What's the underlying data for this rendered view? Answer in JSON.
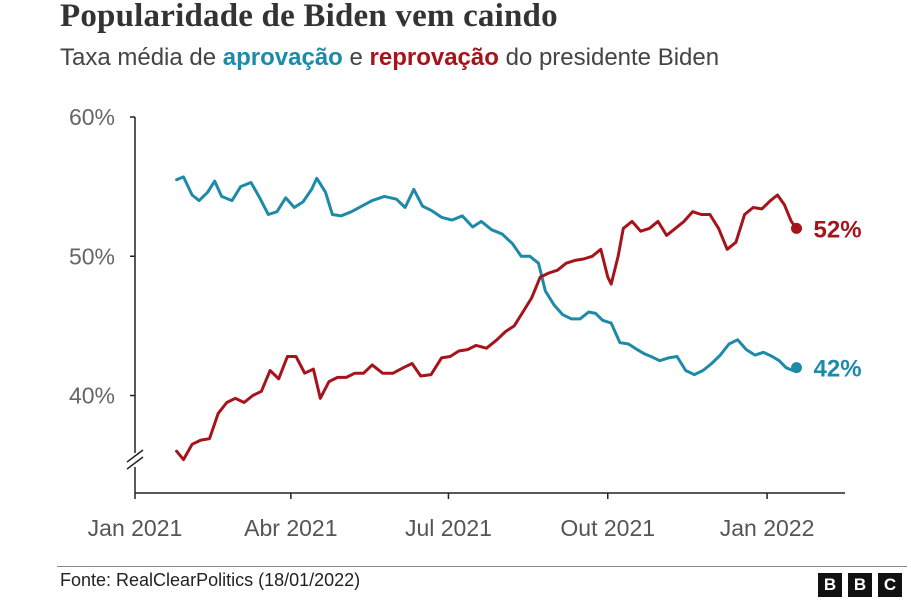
{
  "title": "Popularidade de Biden vem caindo",
  "subtitle": {
    "prefix": "Taxa média de ",
    "approve_word": "aprovação",
    "middle": " e ",
    "disapprove_word": "reprovação",
    "suffix": " do presidente Biden"
  },
  "source": "Fonte: RealClearPolitics (18/01/2022)",
  "logo": [
    "B",
    "B",
    "C"
  ],
  "colors": {
    "approve": "#1d8aa8",
    "disapprove": "#a5141b"
  },
  "chart_data": {
    "type": "line",
    "ylim": [
      33,
      60
    ],
    "yticks": [
      {
        "value": 40,
        "label": "40%"
      },
      {
        "value": 50,
        "label": "50%"
      },
      {
        "value": 60,
        "label": "60%"
      }
    ],
    "xlim": [
      "2021-01-01",
      "2022-02-15"
    ],
    "xticks": [
      {
        "date": "2021-01-01",
        "label": "Jan 2021"
      },
      {
        "date": "2021-04-01",
        "label": "Abr 2021"
      },
      {
        "date": "2021-07-01",
        "label": "Jul 2021"
      },
      {
        "date": "2021-10-01",
        "label": "Out 2021"
      },
      {
        "date": "2022-01-01",
        "label": "Jan 2022"
      }
    ],
    "axis_break": true,
    "grid": false,
    "series": [
      {
        "key": "approve",
        "end_label": "42%",
        "points": [
          [
            "2021-01-25",
            55.5
          ],
          [
            "2021-01-29",
            55.7
          ],
          [
            "2021-02-03",
            54.4
          ],
          [
            "2021-02-07",
            54.0
          ],
          [
            "2021-02-12",
            54.6
          ],
          [
            "2021-02-16",
            55.4
          ],
          [
            "2021-02-20",
            54.3
          ],
          [
            "2021-02-26",
            54.0
          ],
          [
            "2021-03-03",
            55.0
          ],
          [
            "2021-03-09",
            55.3
          ],
          [
            "2021-03-14",
            54.2
          ],
          [
            "2021-03-19",
            53.0
          ],
          [
            "2021-03-24",
            53.2
          ],
          [
            "2021-03-29",
            54.2
          ],
          [
            "2021-04-03",
            53.5
          ],
          [
            "2021-04-08",
            53.9
          ],
          [
            "2021-04-13",
            54.8
          ],
          [
            "2021-04-16",
            55.6
          ],
          [
            "2021-04-21",
            54.6
          ],
          [
            "2021-04-25",
            53.0
          ],
          [
            "2021-04-30",
            52.9
          ],
          [
            "2021-05-06",
            53.2
          ],
          [
            "2021-05-12",
            53.6
          ],
          [
            "2021-05-18",
            54.0
          ],
          [
            "2021-05-25",
            54.3
          ],
          [
            "2021-06-01",
            54.1
          ],
          [
            "2021-06-06",
            53.5
          ],
          [
            "2021-06-11",
            54.8
          ],
          [
            "2021-06-16",
            53.6
          ],
          [
            "2021-06-21",
            53.3
          ],
          [
            "2021-06-27",
            52.8
          ],
          [
            "2021-07-03",
            52.6
          ],
          [
            "2021-07-09",
            52.9
          ],
          [
            "2021-07-15",
            52.1
          ],
          [
            "2021-07-20",
            52.5
          ],
          [
            "2021-07-26",
            51.9
          ],
          [
            "2021-08-01",
            51.6
          ],
          [
            "2021-08-07",
            50.9
          ],
          [
            "2021-08-12",
            50.0
          ],
          [
            "2021-08-17",
            50.0
          ],
          [
            "2021-08-22",
            49.5
          ],
          [
            "2021-08-26",
            47.5
          ],
          [
            "2021-08-31",
            46.5
          ],
          [
            "2021-09-05",
            45.8
          ],
          [
            "2021-09-10",
            45.5
          ],
          [
            "2021-09-15",
            45.5
          ],
          [
            "2021-09-20",
            46.0
          ],
          [
            "2021-09-24",
            45.9
          ],
          [
            "2021-09-28",
            45.4
          ],
          [
            "2021-10-03",
            45.2
          ],
          [
            "2021-10-08",
            43.8
          ],
          [
            "2021-10-13",
            43.7
          ],
          [
            "2021-10-18",
            43.3
          ],
          [
            "2021-10-22",
            43.0
          ],
          [
            "2021-10-26",
            42.8
          ],
          [
            "2021-10-31",
            42.5
          ],
          [
            "2021-11-05",
            42.7
          ],
          [
            "2021-11-10",
            42.8
          ],
          [
            "2021-11-15",
            41.8
          ],
          [
            "2021-11-20",
            41.5
          ],
          [
            "2021-11-25",
            41.8
          ],
          [
            "2021-11-30",
            42.3
          ],
          [
            "2021-12-05",
            42.9
          ],
          [
            "2021-12-10",
            43.7
          ],
          [
            "2021-12-15",
            44.0
          ],
          [
            "2021-12-20",
            43.3
          ],
          [
            "2021-12-25",
            42.9
          ],
          [
            "2021-12-30",
            43.1
          ],
          [
            "2022-01-04",
            42.8
          ],
          [
            "2022-01-08",
            42.5
          ],
          [
            "2022-01-12",
            42.0
          ],
          [
            "2022-01-16",
            41.8
          ],
          [
            "2022-01-18",
            42.0
          ]
        ]
      },
      {
        "key": "disapprove",
        "end_label": "52%",
        "points": [
          [
            "2021-01-25",
            36.0
          ],
          [
            "2021-01-29",
            35.4
          ],
          [
            "2021-02-03",
            36.5
          ],
          [
            "2021-02-08",
            36.8
          ],
          [
            "2021-02-13",
            36.9
          ],
          [
            "2021-02-18",
            38.7
          ],
          [
            "2021-02-23",
            39.5
          ],
          [
            "2021-02-28",
            39.8
          ],
          [
            "2021-03-05",
            39.5
          ],
          [
            "2021-03-10",
            40.0
          ],
          [
            "2021-03-15",
            40.3
          ],
          [
            "2021-03-20",
            41.8
          ],
          [
            "2021-03-25",
            41.2
          ],
          [
            "2021-03-30",
            42.8
          ],
          [
            "2021-04-04",
            42.8
          ],
          [
            "2021-04-09",
            41.6
          ],
          [
            "2021-04-14",
            41.9
          ],
          [
            "2021-04-18",
            39.8
          ],
          [
            "2021-04-23",
            41.0
          ],
          [
            "2021-04-28",
            41.3
          ],
          [
            "2021-05-03",
            41.3
          ],
          [
            "2021-05-08",
            41.6
          ],
          [
            "2021-05-13",
            41.6
          ],
          [
            "2021-05-18",
            42.2
          ],
          [
            "2021-05-24",
            41.6
          ],
          [
            "2021-05-30",
            41.6
          ],
          [
            "2021-06-05",
            42.0
          ],
          [
            "2021-06-10",
            42.3
          ],
          [
            "2021-06-15",
            41.4
          ],
          [
            "2021-06-21",
            41.5
          ],
          [
            "2021-06-27",
            42.7
          ],
          [
            "2021-07-02",
            42.8
          ],
          [
            "2021-07-07",
            43.2
          ],
          [
            "2021-07-12",
            43.3
          ],
          [
            "2021-07-17",
            43.6
          ],
          [
            "2021-07-23",
            43.4
          ],
          [
            "2021-07-29",
            44.0
          ],
          [
            "2021-08-03",
            44.6
          ],
          [
            "2021-08-08",
            45.0
          ],
          [
            "2021-08-13",
            46.0
          ],
          [
            "2021-08-18",
            47.0
          ],
          [
            "2021-08-23",
            48.5
          ],
          [
            "2021-08-28",
            48.8
          ],
          [
            "2021-09-02",
            49.0
          ],
          [
            "2021-09-07",
            49.5
          ],
          [
            "2021-09-12",
            49.7
          ],
          [
            "2021-09-17",
            49.8
          ],
          [
            "2021-09-22",
            50.0
          ],
          [
            "2021-09-27",
            50.5
          ],
          [
            "2021-10-01",
            48.5
          ],
          [
            "2021-10-03",
            48.0
          ],
          [
            "2021-10-07",
            50.0
          ],
          [
            "2021-10-10",
            52.0
          ],
          [
            "2021-10-15",
            52.5
          ],
          [
            "2021-10-20",
            51.8
          ],
          [
            "2021-10-25",
            52.0
          ],
          [
            "2021-10-30",
            52.5
          ],
          [
            "2021-11-04",
            51.5
          ],
          [
            "2021-11-09",
            52.0
          ],
          [
            "2021-11-14",
            52.5
          ],
          [
            "2021-11-19",
            53.2
          ],
          [
            "2021-11-24",
            53.0
          ],
          [
            "2021-11-29",
            53.0
          ],
          [
            "2021-12-04",
            52.0
          ],
          [
            "2021-12-09",
            50.5
          ],
          [
            "2021-12-14",
            51.0
          ],
          [
            "2021-12-19",
            53.0
          ],
          [
            "2021-12-24",
            53.5
          ],
          [
            "2021-12-29",
            53.4
          ],
          [
            "2022-01-03",
            54.0
          ],
          [
            "2022-01-07",
            54.4
          ],
          [
            "2022-01-11",
            53.7
          ],
          [
            "2022-01-15",
            52.5
          ],
          [
            "2022-01-18",
            52.0
          ]
        ]
      }
    ]
  }
}
